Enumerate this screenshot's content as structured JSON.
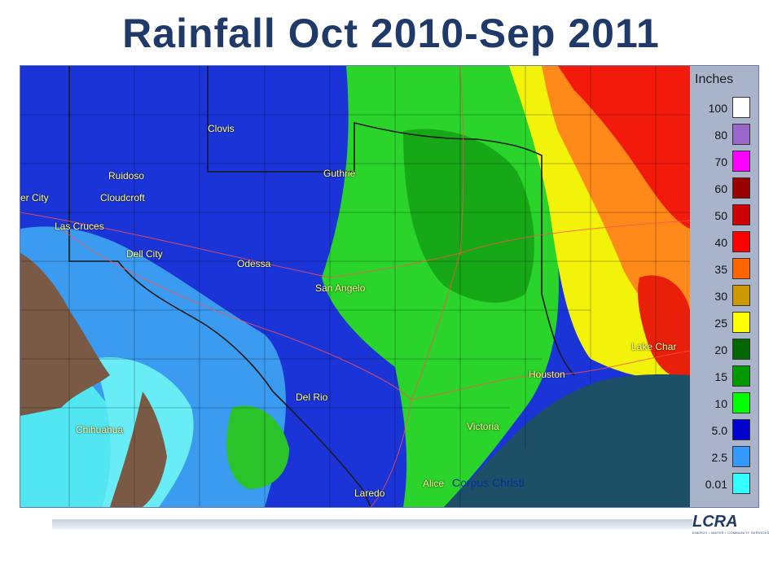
{
  "title": "Rainfall Oct 2010-Sep 2011",
  "legend": {
    "title": "Inches",
    "entries": [
      {
        "label": "100",
        "color": "#ffffff"
      },
      {
        "label": "80",
        "color": "#9966cc"
      },
      {
        "label": "70",
        "color": "#ff00ff"
      },
      {
        "label": "60",
        "color": "#990000"
      },
      {
        "label": "50",
        "color": "#cc0000"
      },
      {
        "label": "40",
        "color": "#ff0000"
      },
      {
        "label": "35",
        "color": "#ff6600"
      },
      {
        "label": "30",
        "color": "#cc9900"
      },
      {
        "label": "25",
        "color": "#ffff00"
      },
      {
        "label": "20",
        "color": "#006600"
      },
      {
        "label": "15",
        "color": "#009900"
      },
      {
        "label": "10",
        "color": "#00ff00"
      },
      {
        "label": "5.0",
        "color": "#0000cc"
      },
      {
        "label": "2.5",
        "color": "#3399ff"
      },
      {
        "label": "0.01",
        "color": "#33ffff"
      }
    ]
  },
  "cities": {
    "clovis": "Clovis",
    "ruidoso": "Ruidoso",
    "guthrie": "Guthrie",
    "silver_city": "er City",
    "cloudcroft": "Cloudcroft",
    "las_cruces": "Las Cruces",
    "dell_city": "Dell City",
    "odessa": "Odessa",
    "san_angelo": "San Angelo",
    "lake_charles": "Lake Char",
    "houston": "Houston",
    "del_rio": "Del Rio",
    "chihuahua": "Chihuahua",
    "victoria": "Victoria",
    "alice": "Alice",
    "corpus_christi": "Corpus Christi",
    "laredo": "Laredo"
  },
  "logo": {
    "name": "LCRA",
    "tagline": "ENERGY • WATER • COMMUNITY SERVICES"
  },
  "colors": {
    "title": "#1f3a68",
    "gulf": "#1d4f66",
    "mexico_land": "#7a5a45"
  }
}
